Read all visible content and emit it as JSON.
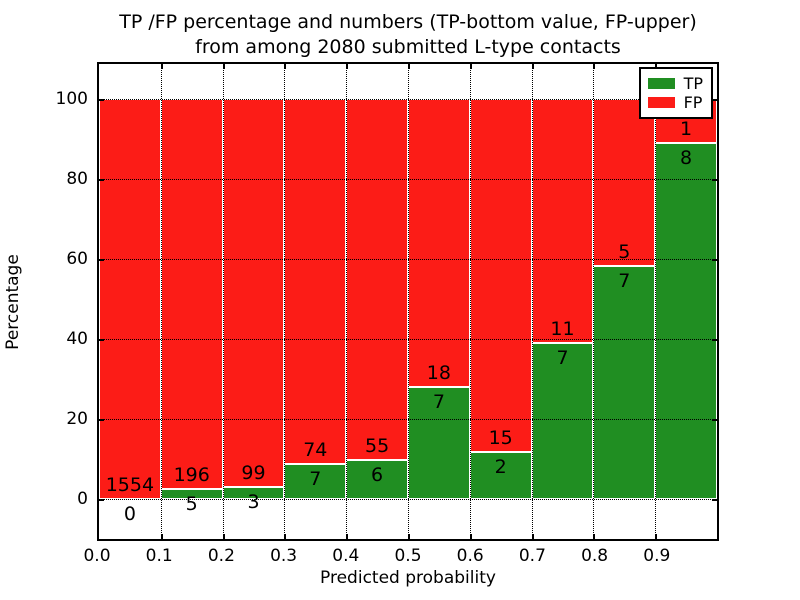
{
  "title": {
    "line1": "TP /FP percentage and numbers (TP-bottom value, FP-upper)",
    "line2": "from among 2080 submitted L-type contacts"
  },
  "x_axis": {
    "label": "Predicted probability",
    "tick_labels": [
      "0.0",
      "0.1",
      "0.2",
      "0.3",
      "0.4",
      "0.5",
      "0.6",
      "0.7",
      "0.8",
      "0.9"
    ]
  },
  "y_axis": {
    "label": "Percentage",
    "tick_labels": [
      "0",
      "20",
      "40",
      "60",
      "80",
      "100"
    ],
    "tick_values": [
      0,
      20,
      40,
      60,
      80,
      100
    ]
  },
  "legend": {
    "items": [
      {
        "label": "TP",
        "color": "#208e22"
      },
      {
        "label": "FP",
        "color": "#fc1c17"
      }
    ],
    "position": "upper right"
  },
  "colors": {
    "tp_green": "#208e22",
    "fp_red": "#fc1c17",
    "bar_edge": "#ffffff",
    "grid": "#000000",
    "frame": "#000000",
    "background": "#ffffff"
  },
  "chart_data": {
    "type": "bar",
    "stacked": true,
    "title": "TP /FP percentage and numbers (TP-bottom value, FP-upper) from among 2080 submitted L-type contacts",
    "xlabel": "Predicted probability",
    "ylabel": "Percentage",
    "xlim": [
      0.0,
      1.0
    ],
    "ylim": [
      -11,
      109
    ],
    "grid": true,
    "legend_position": "upper right",
    "total_contacts": 2080,
    "bin_edges": [
      0.0,
      0.1,
      0.2,
      0.3,
      0.4,
      0.5,
      0.6,
      0.7,
      0.8,
      0.9,
      1.0
    ],
    "categories": [
      "0.0-0.1",
      "0.1-0.2",
      "0.2-0.3",
      "0.3-0.4",
      "0.4-0.5",
      "0.5-0.6",
      "0.6-0.7",
      "0.7-0.8",
      "0.8-0.9",
      "0.9-1.0"
    ],
    "series": [
      {
        "name": "TP",
        "color": "#208e22",
        "counts": [
          0,
          5,
          3,
          7,
          6,
          7,
          2,
          7,
          7,
          8
        ]
      },
      {
        "name": "FP",
        "color": "#fc1c17",
        "counts": [
          1554,
          196,
          99,
          74,
          55,
          18,
          15,
          11,
          5,
          1
        ]
      }
    ],
    "tp_percent_of_bin": [
      0.0,
      2.49,
      2.94,
      8.64,
      9.84,
      28.0,
      11.76,
      38.89,
      58.33,
      88.89
    ],
    "note": "Each bar spans 0-100%: green TP percentage at bottom, red FP percentage above. TP count printed below segment boundary, FP count above it."
  }
}
